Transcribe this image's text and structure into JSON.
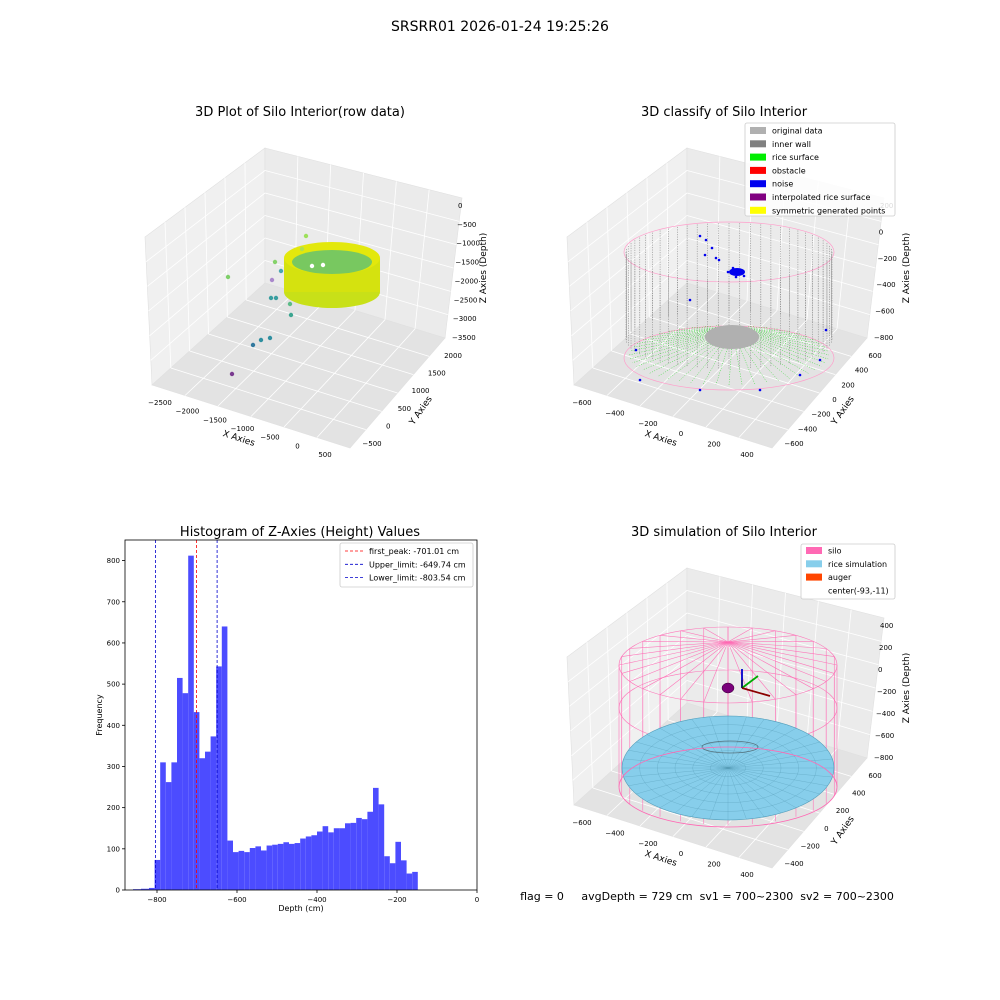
{
  "figure": {
    "suptitle": "SRSRR01 2026-01-24 19:25:26",
    "footer": "flag = 0     avgDepth = 729 cm  sv1 = 700~2300  sv2 = 700~2300"
  },
  "colors": {
    "hist_bar": "#4c4cff",
    "first_peak": "#ff0000",
    "limits": "#0000cc",
    "original_data": "#b0b0b0",
    "inner_wall": "#808080",
    "rice_surface": "#00ee00",
    "obstacle": "#ff0000",
    "noise": "#0000ee",
    "interpolated": "#800080",
    "symmetric": "#ffff00",
    "silo": "#ff69b4",
    "rice_sim": "#87ceeb",
    "auger": "#ff4500"
  },
  "chart_data": [
    {
      "type": "scatter3d",
      "title": "3D Plot of Silo Interior(row data)",
      "xlabel": "X Axies",
      "ylabel": "Y Axies",
      "zlabel": "Z Axies (Depth)",
      "x_ticks": [
        "−2500",
        "−2000",
        "−1500",
        "−1000",
        "−500",
        "0",
        "500"
      ],
      "y_ticks": [
        "−500",
        "0",
        "500",
        "1000",
        "1500",
        "2000"
      ],
      "z_ticks": [
        "0",
        "−500",
        "−1000",
        "−1500",
        "−2000",
        "−2500",
        "−3000",
        "−3500"
      ]
    },
    {
      "type": "scatter3d",
      "title": "3D classify of Silo Interior",
      "xlabel": "X Axies",
      "ylabel": "Y Axies",
      "zlabel": "Z Axies (Depth)",
      "x_ticks": [
        "−600",
        "−400",
        "−200",
        "0",
        "200",
        "400"
      ],
      "y_ticks": [
        "−600",
        "−400",
        "−200",
        "0",
        "200",
        "400",
        "600"
      ],
      "z_ticks": [
        "200",
        "0",
        "−200",
        "−400",
        "−600",
        "−800"
      ],
      "legend": [
        "original data",
        "inner wall",
        "rice surface",
        "obstacle",
        "noise",
        "interpolated rice surface",
        "symmetric generated points"
      ],
      "legend_position": "top-right"
    },
    {
      "type": "bar",
      "title": "Histogram of Z-Axies (Height) Values",
      "xlabel": "Depth (cm)",
      "ylabel": "Frequency",
      "xlim": [
        -880,
        0
      ],
      "ylim": [
        0,
        850
      ],
      "x_ticks": [
        -800,
        -600,
        -400,
        -200,
        0
      ],
      "x_tick_labels": [
        "−800",
        "−600",
        "−400",
        "−200",
        "0"
      ],
      "y_ticks": [
        0,
        100,
        200,
        300,
        400,
        500,
        600,
        700,
        800
      ],
      "bin_edges": [
        -860,
        -840,
        -820,
        -806,
        -792,
        -778,
        -764,
        -750,
        -736,
        -722,
        -708,
        -694,
        -680,
        -666,
        -652,
        -638,
        -624,
        -610,
        -596,
        -582,
        -568,
        -554,
        -540,
        -526,
        -512,
        -498,
        -484,
        -470,
        -456,
        -442,
        -428,
        -414,
        -400,
        -386,
        -372,
        -358,
        -344,
        -330,
        -316,
        -302,
        -288,
        -274,
        -260,
        -246,
        -232,
        -218,
        -204,
        -190,
        -176,
        -162,
        -148,
        -134,
        -120,
        -106,
        -92,
        -78,
        -64,
        -50,
        -36,
        -22,
        -8,
        0
      ],
      "values": [
        2,
        3,
        5,
        73,
        310,
        262,
        310,
        515,
        478,
        812,
        432,
        320,
        336,
        373,
        543,
        640,
        120,
        92,
        95,
        92,
        102,
        106,
        96,
        108,
        110,
        112,
        116,
        112,
        114,
        125,
        130,
        133,
        142,
        155,
        140,
        150,
        150,
        162,
        163,
        175,
        172,
        190,
        248,
        208,
        82,
        65,
        117,
        72,
        40,
        44,
        0,
        0,
        0,
        0,
        0,
        0,
        0,
        0,
        0,
        0,
        0
      ],
      "lines": [
        {
          "label": "first_peak: -701.01 cm",
          "x": -701.01,
          "color": "#ff0000"
        },
        {
          "label": "Upper_limit: -649.74 cm",
          "x": -649.74,
          "color": "#0000cc"
        },
        {
          "label": "Lower_limit: -803.54 cm",
          "x": -803.54,
          "color": "#0000cc"
        }
      ],
      "legend_position": "top-right"
    },
    {
      "type": "surface3d",
      "title": "3D simulation of Silo Interior",
      "xlabel": "X Axies",
      "ylabel": "Y Axies",
      "zlabel": "Z Axies (Depth)",
      "x_ticks": [
        "−600",
        "−400",
        "−200",
        "0",
        "200",
        "400"
      ],
      "y_ticks": [
        "−400",
        "−200",
        "0",
        "200",
        "400",
        "600"
      ],
      "z_ticks": [
        "400",
        "200",
        "0",
        "−200",
        "−400",
        "−600",
        "−800"
      ],
      "legend": [
        "silo",
        "rice simulation",
        "auger",
        "center(-93,-11)"
      ],
      "legend_position": "top-right"
    }
  ]
}
